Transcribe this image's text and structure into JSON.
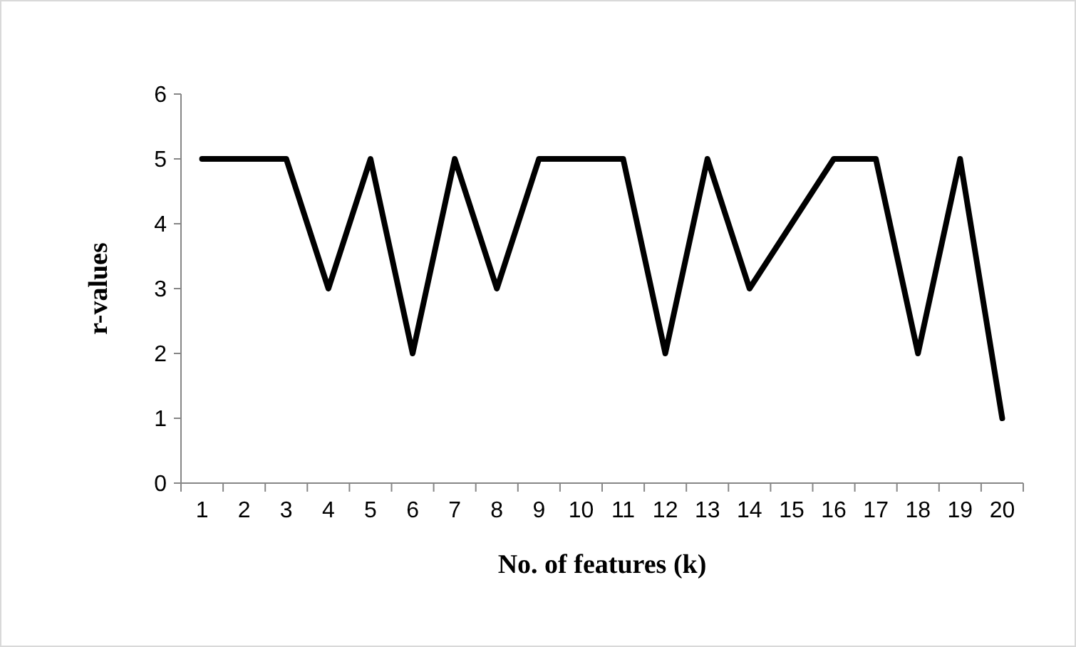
{
  "chart_data": {
    "type": "line",
    "xlabel": "No. of features (k)",
    "ylabel": "r-values",
    "categories": [
      "1",
      "2",
      "3",
      "4",
      "5",
      "6",
      "7",
      "8",
      "9",
      "10",
      "11",
      "12",
      "13",
      "14",
      "15",
      "16",
      "17",
      "18",
      "19",
      "20"
    ],
    "series": [
      {
        "color": "#000000",
        "values": [
          5,
          5,
          5,
          3,
          5,
          2,
          5,
          3,
          5,
          5,
          5,
          2,
          5,
          3,
          4,
          5,
          5,
          2,
          5,
          1
        ]
      }
    ],
    "ylim": [
      0,
      6
    ],
    "yticks": [
      0,
      1,
      2,
      3,
      4,
      5,
      6
    ],
    "grid": false,
    "marker": "none",
    "line_style": "solid"
  }
}
